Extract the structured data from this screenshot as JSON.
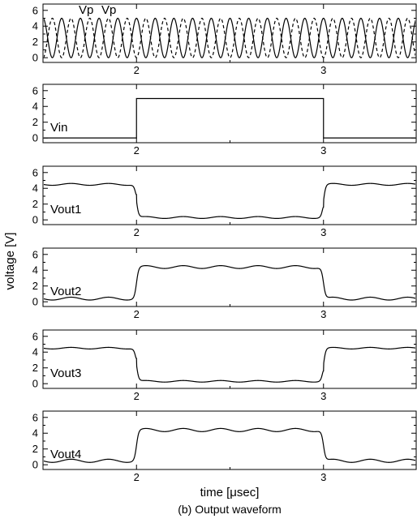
{
  "figure": {
    "caption": "(b) Output waveform",
    "xlabel": "time  [μsec]",
    "ylabel": "voltage [V]"
  },
  "chart_data": {
    "type": "line",
    "xlim": [
      1.5,
      3.5
    ],
    "ylim": [
      -0.6,
      6.8
    ],
    "x_ticks": [
      2,
      3
    ],
    "y_ticks": [
      0,
      2,
      4,
      6
    ],
    "grid": false,
    "panels": [
      {
        "name": "clock",
        "labels": [
          "Vp",
          "Vp"
        ],
        "overline": [
          false,
          true
        ],
        "series": [
          {
            "name": "Vp",
            "kind": "sine",
            "dash": false,
            "offset": 2.5,
            "amplitude": 2.5,
            "period": 0.1,
            "phase": 1.570796
          },
          {
            "name": "Vp",
            "kind": "sine",
            "dash": true,
            "offset": 2.5,
            "amplitude": 2.5,
            "period": 0.1,
            "phase": -1.570796
          }
        ]
      },
      {
        "name": "Vin",
        "labels": [
          "Vin"
        ],
        "series": [
          {
            "name": "Vin",
            "kind": "step",
            "low": 0.0,
            "high": 5.0,
            "t_rise": 2.0,
            "t_fall": 3.0
          }
        ]
      },
      {
        "name": "Vout1",
        "labels": [
          "Vout1"
        ],
        "series": [
          {
            "name": "Vout1",
            "kind": "response",
            "base": 4.5,
            "mid": 0.3,
            "ripple": 0.12,
            "period": 0.2,
            "overshoot": 0.8
          }
        ]
      },
      {
        "name": "Vout2",
        "labels": [
          "Vout2"
        ],
        "series": [
          {
            "name": "Vout2",
            "kind": "response",
            "base": 0.4,
            "mid": 4.4,
            "ripple": 0.18,
            "period": 0.2,
            "overshoot": 0.0
          }
        ]
      },
      {
        "name": "Vout3",
        "labels": [
          "Vout3"
        ],
        "series": [
          {
            "name": "Vout3",
            "kind": "response",
            "base": 4.5,
            "mid": 0.3,
            "ripple": 0.1,
            "period": 0.2,
            "overshoot": 0.8
          }
        ]
      },
      {
        "name": "Vout4",
        "labels": [
          "Vout4"
        ],
        "series": [
          {
            "name": "Vout4",
            "kind": "response",
            "base": 0.5,
            "mid": 4.4,
            "ripple": 0.2,
            "period": 0.2,
            "overshoot": 0.0
          }
        ]
      }
    ]
  }
}
